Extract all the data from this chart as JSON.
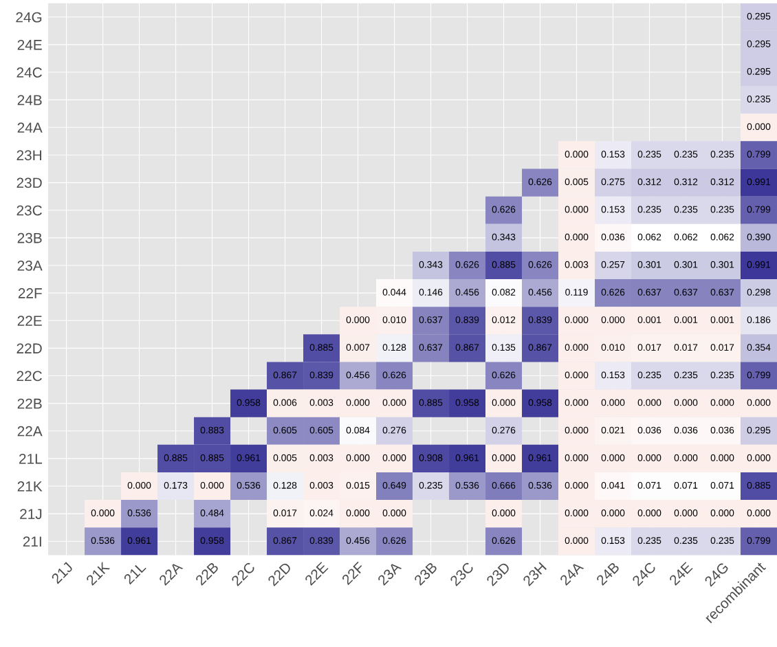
{
  "chart_data": {
    "type": "heatmap",
    "categories": [
      "21J",
      "21K",
      "21L",
      "22A",
      "22B",
      "22C",
      "22D",
      "22E",
      "22F",
      "23A",
      "23B",
      "23C",
      "23D",
      "23H",
      "24A",
      "24B",
      "24C",
      "24E",
      "24G",
      "recombinant"
    ],
    "y_categories": [
      "24G",
      "24E",
      "24C",
      "24B",
      "24A",
      "23H",
      "23D",
      "23C",
      "23B",
      "23A",
      "22F",
      "22E",
      "22D",
      "22C",
      "22B",
      "22A",
      "21L",
      "21K",
      "21J",
      "21I"
    ],
    "cells": [
      [
        null,
        null,
        null,
        null,
        null,
        null,
        null,
        null,
        null,
        null,
        null,
        null,
        null,
        null,
        null,
        null,
        null,
        null,
        null,
        0.295
      ],
      [
        null,
        null,
        null,
        null,
        null,
        null,
        null,
        null,
        null,
        null,
        null,
        null,
        null,
        null,
        null,
        null,
        null,
        null,
        null,
        0.295
      ],
      [
        null,
        null,
        null,
        null,
        null,
        null,
        null,
        null,
        null,
        null,
        null,
        null,
        null,
        null,
        null,
        null,
        null,
        null,
        null,
        0.295
      ],
      [
        null,
        null,
        null,
        null,
        null,
        null,
        null,
        null,
        null,
        null,
        null,
        null,
        null,
        null,
        null,
        null,
        null,
        null,
        null,
        0.235
      ],
      [
        null,
        null,
        null,
        null,
        null,
        null,
        null,
        null,
        null,
        null,
        null,
        null,
        null,
        null,
        null,
        null,
        null,
        null,
        null,
        0.0
      ],
      [
        null,
        null,
        null,
        null,
        null,
        null,
        null,
        null,
        null,
        null,
        null,
        null,
        null,
        null,
        0.0,
        0.153,
        0.235,
        0.235,
        0.235,
        0.799
      ],
      [
        null,
        null,
        null,
        null,
        null,
        null,
        null,
        null,
        null,
        null,
        null,
        null,
        null,
        0.626,
        0.005,
        0.275,
        0.312,
        0.312,
        0.312,
        0.991
      ],
      [
        null,
        null,
        null,
        null,
        null,
        null,
        null,
        null,
        null,
        null,
        null,
        null,
        0.626,
        null,
        0.0,
        0.153,
        0.235,
        0.235,
        0.235,
        0.799
      ],
      [
        null,
        null,
        null,
        null,
        null,
        null,
        null,
        null,
        null,
        null,
        null,
        null,
        0.343,
        null,
        0.0,
        0.036,
        0.062,
        0.062,
        0.062,
        0.39
      ],
      [
        null,
        null,
        null,
        null,
        null,
        null,
        null,
        null,
        null,
        null,
        0.343,
        0.626,
        0.885,
        0.626,
        0.003,
        0.257,
        0.301,
        0.301,
        0.301,
        0.991
      ],
      [
        null,
        null,
        null,
        null,
        null,
        null,
        null,
        null,
        null,
        0.044,
        0.146,
        0.456,
        0.082,
        0.456,
        0.119,
        0.626,
        0.637,
        0.637,
        0.637,
        0.298
      ],
      [
        null,
        null,
        null,
        null,
        null,
        null,
        null,
        null,
        0.0,
        0.01,
        0.637,
        0.839,
        0.012,
        0.839,
        0.0,
        0.0,
        0.001,
        0.001,
        0.001,
        0.186
      ],
      [
        null,
        null,
        null,
        null,
        null,
        null,
        null,
        0.885,
        0.007,
        0.128,
        0.637,
        0.867,
        0.135,
        0.867,
        0.0,
        0.01,
        0.017,
        0.017,
        0.017,
        0.354
      ],
      [
        null,
        null,
        null,
        null,
        null,
        null,
        0.867,
        0.839,
        0.456,
        0.626,
        null,
        null,
        0.626,
        null,
        0.0,
        0.153,
        0.235,
        0.235,
        0.235,
        0.799
      ],
      [
        null,
        null,
        null,
        null,
        null,
        0.958,
        0.006,
        0.003,
        0.0,
        0.0,
        0.885,
        0.958,
        0.0,
        0.958,
        0.0,
        0.0,
        0.0,
        0.0,
        0.0,
        0.0
      ],
      [
        null,
        null,
        null,
        null,
        0.883,
        null,
        0.605,
        0.605,
        0.084,
        0.276,
        null,
        null,
        0.276,
        null,
        0.0,
        0.021,
        0.036,
        0.036,
        0.036,
        0.295
      ],
      [
        null,
        null,
        null,
        0.885,
        0.885,
        0.961,
        0.005,
        0.003,
        0.0,
        0.0,
        0.908,
        0.961,
        0.0,
        0.961,
        0.0,
        0.0,
        0.0,
        0.0,
        0.0,
        0.0
      ],
      [
        null,
        null,
        0.0,
        0.173,
        0.0,
        0.536,
        0.128,
        0.003,
        0.015,
        0.649,
        0.235,
        0.536,
        0.666,
        0.536,
        0.0,
        0.041,
        0.071,
        0.071,
        0.071,
        0.885
      ],
      [
        null,
        0.0,
        0.536,
        null,
        0.484,
        null,
        0.017,
        0.024,
        0.0,
        0.0,
        null,
        null,
        0.0,
        null,
        0.0,
        0.0,
        0.0,
        0.0,
        0.0,
        0.0
      ],
      [
        null,
        0.536,
        0.961,
        null,
        0.958,
        null,
        0.867,
        0.839,
        0.456,
        0.626,
        null,
        null,
        0.626,
        null,
        0.0,
        0.153,
        0.235,
        0.235,
        0.235,
        0.799
      ]
    ],
    "cell_labels": [
      [
        null,
        null,
        null,
        null,
        null,
        null,
        null,
        null,
        null,
        null,
        null,
        null,
        null,
        null,
        null,
        null,
        null,
        null,
        null,
        "0.295"
      ],
      [
        null,
        null,
        null,
        null,
        null,
        null,
        null,
        null,
        null,
        null,
        null,
        null,
        null,
        null,
        null,
        null,
        null,
        null,
        null,
        "0.295"
      ],
      [
        null,
        null,
        null,
        null,
        null,
        null,
        null,
        null,
        null,
        null,
        null,
        null,
        null,
        null,
        null,
        null,
        null,
        null,
        null,
        "0.295"
      ],
      [
        null,
        null,
        null,
        null,
        null,
        null,
        null,
        null,
        null,
        null,
        null,
        null,
        null,
        null,
        null,
        null,
        null,
        null,
        null,
        "0.235"
      ],
      [
        null,
        null,
        null,
        null,
        null,
        null,
        null,
        null,
        null,
        null,
        null,
        null,
        null,
        null,
        null,
        null,
        null,
        null,
        null,
        "0.000"
      ],
      [
        null,
        null,
        null,
        null,
        null,
        null,
        null,
        null,
        null,
        null,
        null,
        null,
        null,
        null,
        "0.000",
        "0.153",
        "0.235",
        "0.235",
        "0.235",
        "0.799"
      ],
      [
        null,
        null,
        null,
        null,
        null,
        null,
        null,
        null,
        null,
        null,
        null,
        null,
        null,
        "0.626",
        "0.005",
        "0.275",
        "0.312",
        "0.312",
        "0.312",
        "0.991"
      ],
      [
        null,
        null,
        null,
        null,
        null,
        null,
        null,
        null,
        null,
        null,
        null,
        null,
        "0.626",
        null,
        "0.000",
        "0.153",
        "0.235",
        "0.235",
        "0.235",
        "0.799"
      ],
      [
        null,
        null,
        null,
        null,
        null,
        null,
        null,
        null,
        null,
        null,
        null,
        null,
        "0.343",
        null,
        "0.000",
        "0.036",
        "0.062",
        "0.062",
        "0.062",
        "0.390"
      ],
      [
        null,
        null,
        null,
        null,
        null,
        null,
        null,
        null,
        null,
        null,
        "0.343",
        "0.626",
        "0.885",
        "0.626",
        "0.003",
        "0.257",
        "0.301",
        "0.301",
        "0.301",
        "0.991"
      ],
      [
        null,
        null,
        null,
        null,
        null,
        null,
        null,
        null,
        null,
        "0.044",
        "0.146",
        "0.456",
        "0.082",
        "0.456",
        "0.119",
        "0.626",
        "0.637",
        "0.637",
        "0.637",
        "0.298"
      ],
      [
        null,
        null,
        null,
        null,
        null,
        null,
        null,
        null,
        "0.000",
        "0.010",
        "0.637",
        "0.839",
        "0.012",
        "0.839",
        "0.000",
        "0.000",
        "0.001",
        "0.001",
        "0.001",
        "0.186"
      ],
      [
        null,
        null,
        null,
        null,
        null,
        null,
        null,
        "0.885",
        "0.007",
        "0.128",
        "0.637",
        "0.867",
        "0.135",
        "0.867",
        "0.000",
        "0.010",
        "0.017",
        "0.017",
        "0.017",
        "0.354"
      ],
      [
        null,
        null,
        null,
        null,
        null,
        null,
        "0.867",
        "0.839",
        "0.456",
        "0.626",
        null,
        null,
        "0.626",
        null,
        "0.000",
        "0.153",
        "0.235",
        "0.235",
        "0.235",
        "0.799"
      ],
      [
        null,
        null,
        null,
        null,
        null,
        "0.958",
        "0.006",
        "0.003",
        "0.000",
        "0.000",
        "0.885",
        "0.958",
        "0.000",
        "0.958",
        "0.000",
        "0.000",
        "0.000",
        "0.000",
        "0.000",
        "0.000"
      ],
      [
        null,
        null,
        null,
        null,
        "0.883",
        null,
        "0.605",
        "0.605",
        "0.084",
        "0.276",
        null,
        null,
        "0.276",
        null,
        "0.000",
        "0.021",
        "0.036",
        "0.036",
        "0.036",
        "0.295"
      ],
      [
        null,
        null,
        null,
        "0.885",
        "0.885",
        "0.961",
        "0.005",
        "0.003",
        "0.000",
        "0.000",
        "0.908",
        "0.961",
        "0.000",
        "0.961",
        "0.000",
        "0.000",
        "0.000",
        "0.000",
        "0.000",
        "0.000"
      ],
      [
        null,
        null,
        "0.000",
        "0.173",
        "0.000",
        "0.536",
        "0.128",
        "0.003",
        "0.015",
        "0.649",
        "0.235",
        "0.536",
        "0.666",
        "0.536",
        "0.000",
        "0.041",
        "0.071",
        "0.071",
        "0.071",
        "0.885"
      ],
      [
        null,
        "0.000",
        "0.536",
        null,
        "0.484",
        null,
        "0.017",
        "0.024",
        "0.000",
        "0.000",
        null,
        null,
        "0.000",
        null,
        "0.000",
        "0.000",
        "0.000",
        "0.000",
        "0.000",
        "0.000"
      ],
      [
        null,
        "0.536",
        "0.961",
        null,
        "0.958",
        null,
        "0.867",
        "0.839",
        "0.456",
        "0.626",
        null,
        null,
        "0.626",
        null,
        "0.000",
        "0.153",
        "0.235",
        "0.235",
        "0.235",
        "0.799"
      ]
    ],
    "colors": [
      "#fbeeeb",
      "#ffffff",
      "#3a3597"
    ],
    "grid": true
  }
}
